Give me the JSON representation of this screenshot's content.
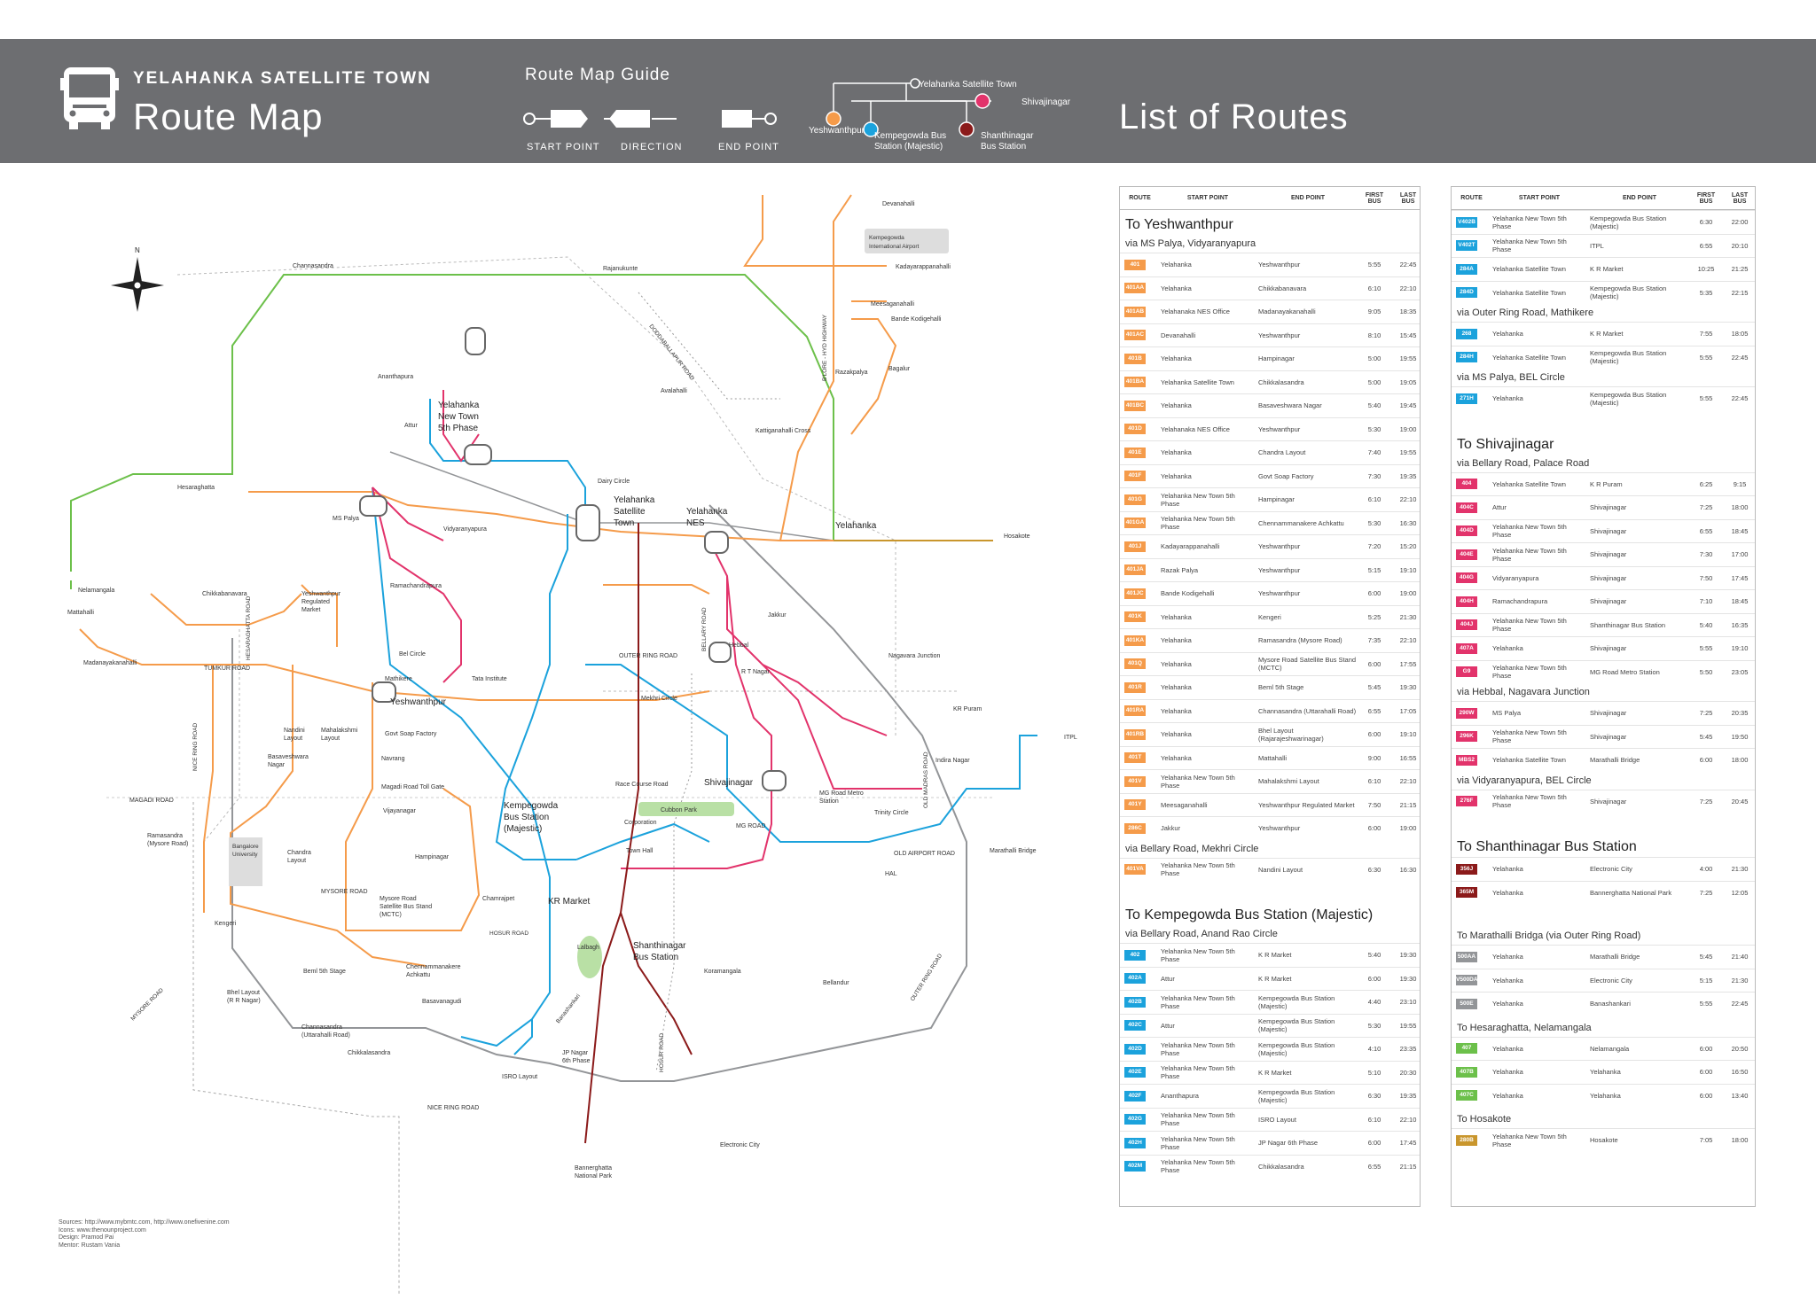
{
  "header": {
    "town": "YELAHANKA SATELLITE TOWN",
    "title": "Route Map",
    "guide_title": "Route Map Guide",
    "guide_labels": [
      "START POINT",
      "DIRECTION",
      "END POINT"
    ],
    "list_title": "List of Routes",
    "legend": {
      "yelahanka": "Yelahanka Satellite Town",
      "shivajinagar": "Shivajinagar",
      "yeshwanthpur": "Yeshwanthpur",
      "kempegowda": "Kempegowda Bus Station (Majestic)",
      "shanthinagar": "Shanthinagar Bus Station"
    }
  },
  "colors": {
    "orange": "#f59b4a",
    "blue": "#1ba2dc",
    "pink": "#e2336b",
    "maroon": "#8b1a1a",
    "green": "#6cc04a",
    "gray": "#939598",
    "gold": "#c9962d",
    "header": "#6d6e71"
  },
  "map_labels": {
    "devanahalli": "Devanahalli",
    "airport": "Kempegowda International Airport",
    "kadayarappanahalli": "Kadayarappanahalli",
    "meesaganahalli": "Meesaganahalli",
    "bande": "Bande Kodigehalli",
    "razakpalya": "Razakpalya",
    "bagalur": "Bagalur",
    "katiganahalli": "Kattiganahalli Cross",
    "hyd_hwy": "B'LORE - HYD HIGHWAY",
    "channasandra": "Channasandra",
    "rajanukunte": "Rajanukunte",
    "doddaballapur": "DODDABALLAPUR ROAD",
    "avalahalli": "Avalahalli",
    "anantapura": "Ananthapura",
    "attur": "Attur",
    "ytown": "Yelahanka New Town 5th Phase",
    "hesaraghatta": "Hesaraghatta",
    "mspalya": "MS Palya",
    "dairy": "Dairy Circle",
    "yst": "Yelahanka Satellite Town",
    "ynes": "Yelahanka NES",
    "yelahanka": "Yelahanka",
    "hosakote": "Hosakote",
    "vidyaranyapura": "Vidyaranyapura",
    "nelamangala": "Nelamangala",
    "mattahalli": "Mattahalli",
    "chikkabanavara": "Chikkabanavara",
    "ramachandrapura": "Ramachandrapura",
    "yrm": "Yeshwanthpur Regulated Market",
    "hesar_road": "HESARAGHATTA ROAD",
    "madanayakanahalli": "Madanayakanahalli",
    "tumkur": "TUMKUR ROAD",
    "belcircle": "Bel Circle",
    "mathikere": "Mathikere",
    "tata": "Tata Institute",
    "orr": "OUTER RING ROAD",
    "jakkur": "Jakkur",
    "hebbal": "Hebbal",
    "bellary": "BELLARY ROAD",
    "rtnagar": "R T Nagar",
    "nagavara": "Nagavara Junction",
    "yeshwanthpur": "Yeshwanthpur",
    "mekhri": "Mekhri Circle",
    "krpuram": "KR Puram",
    "itpl": "ITPL",
    "nandini": "Nandini Layout",
    "mahalakshmi": "Mahalakshmi Layout",
    "gsf": "Govt Soap Factory",
    "basaveshwara": "Basaveshwara Nagar",
    "navrang": "Navrang",
    "nice": "NICE RING ROAD",
    "magaditoll": "Magadi Road Toll Gate",
    "magadi": "MAGADI ROAD",
    "racecourse": "Race Course Road",
    "kbs": "Kempegowda Bus Station (Majestic)",
    "cubbon": "Cubbon Park",
    "shivajinagar": "Shivajinagar",
    "indiranagar": "Indira Nagar",
    "oldmadras": "OLD MADRAS ROAD",
    "mgmetro": "MG Road Metro Station",
    "mgroad": "MG ROAD",
    "trinity": "Trinity Circle",
    "corporation": "Corporation",
    "oldairport": "OLD AIRPORT ROAD",
    "marathalli": "Marathalli Bridge",
    "vijayanagar": "Vijayanagar",
    "ramasandra": "Ramasandra (Mysore Road)",
    "bu": "Bangalore University",
    "chandra": "Chandra Layout",
    "hampinagar": "Hampinagar",
    "townhall": "Town Hall",
    "hal": "HAL",
    "mysore_road": "MYSORE ROAD",
    "msbs": "Mysore Road Satellite Bus Stand (MCTC)",
    "chamrajpet": "Chamrajpet",
    "kengeri": "Kengeri",
    "krmarket": "KR Market",
    "hosur": "HOSUR ROAD",
    "lalbagh": "Lalbagh",
    "shanthinagar": "Shanthinagar Bus Station",
    "chennammanakere": "Chennammanakere Achkattu",
    "bhel": "Bhel Layout (R R Nagar)",
    "bemlstage": "Beml 5th Stage",
    "koramangala": "Koramangala",
    "bellandur": "Bellandur",
    "basavanagudi": "Basavanagudi",
    "channasandra2": "Channasandra (Uttarahalli Road)",
    "chikkalasandra": "Chikkalasandra",
    "banashankari": "Banashankari",
    "jpnagar": "JP Nagar 6th Phase",
    "isro": "ISRO Layout",
    "electronic": "Electronic City",
    "bannerghatta": "Bannerghatta National Park",
    "hosur2": "HOSUR ROAD",
    "mysore2": "MYSORE ROAD",
    "outer2": "OUTER RING ROAD"
  },
  "table_headers": [
    "ROUTE",
    "START POINT",
    "END POINT",
    "FIRST BUS",
    "LAST BUS"
  ],
  "left_table": [
    {
      "type": "h",
      "text": "To Yeshwanthpur"
    },
    {
      "type": "s",
      "text": "via MS Palya, Vidyaranyapura"
    },
    {
      "type": "r",
      "route": "401",
      "color": "orange",
      "start": "Yelahanka",
      "end": "Yeshwanthpur",
      "first": "5:55",
      "last": "22:45"
    },
    {
      "type": "r",
      "route": "401AA",
      "color": "orange",
      "start": "Yelahanka",
      "end": "Chikkabanavara",
      "first": "6:10",
      "last": "22:10"
    },
    {
      "type": "r",
      "route": "401AB",
      "color": "orange",
      "start": "Yelahanaka NES Office",
      "end": "Madanayakanahalli",
      "first": "9:05",
      "last": "18:35"
    },
    {
      "type": "r",
      "route": "401AC",
      "color": "orange",
      "start": "Devanahalli",
      "end": "Yeshwanthpur",
      "first": "8:10",
      "last": "15:45"
    },
    {
      "type": "r",
      "route": "401B",
      "color": "orange",
      "start": "Yelahanka",
      "end": "Hampinagar",
      "first": "5:00",
      "last": "19:55"
    },
    {
      "type": "r",
      "route": "401BA",
      "color": "orange",
      "start": "Yelahanka Satellite Town",
      "end": "Chikkalasandra",
      "first": "5:00",
      "last": "19:05"
    },
    {
      "type": "r",
      "route": "401BC",
      "color": "orange",
      "start": "Yelahanka",
      "end": "Basaveshwara Nagar",
      "first": "5:40",
      "last": "19:45"
    },
    {
      "type": "r",
      "route": "401D",
      "color": "orange",
      "start": "Yelahanaka NES Office",
      "end": "Yeshwanthpur",
      "first": "5:30",
      "last": "19:00"
    },
    {
      "type": "r",
      "route": "401E",
      "color": "orange",
      "start": "Yelahanka",
      "end": "Chandra Layout",
      "first": "7:40",
      "last": "19:55"
    },
    {
      "type": "r",
      "route": "401F",
      "color": "orange",
      "start": "Yelahanka",
      "end": "Govt Soap Factory",
      "first": "7:30",
      "last": "19:35"
    },
    {
      "type": "r",
      "route": "401G",
      "color": "orange",
      "start": "Yelahanka New Town 5th Phase",
      "end": "Hampinagar",
      "first": "6:10",
      "last": "22:10"
    },
    {
      "type": "r",
      "route": "401GA",
      "color": "orange",
      "start": "Yelahanka New Town 5th Phase",
      "end": "Chennammanakere Achkattu",
      "first": "5:30",
      "last": "16:30"
    },
    {
      "type": "r",
      "route": "401J",
      "color": "orange",
      "start": "Kadayarappanahalli",
      "end": "Yeshwanthpur",
      "first": "7:20",
      "last": "15:20"
    },
    {
      "type": "r",
      "route": "401JA",
      "color": "orange",
      "start": "Razak Palya",
      "end": "Yeshwanthpur",
      "first": "5:15",
      "last": "19:10"
    },
    {
      "type": "r",
      "route": "401JC",
      "color": "orange",
      "start": "Bande Kodigehalli",
      "end": "Yeshwanthpur",
      "first": "6:00",
      "last": "19:00"
    },
    {
      "type": "r",
      "route": "401K",
      "color": "orange",
      "start": "Yelahanka",
      "end": "Kengeri",
      "first": "5:25",
      "last": "21:30"
    },
    {
      "type": "r",
      "route": "401KA",
      "color": "orange",
      "start": "Yelahanka",
      "end": "Ramasandra (Mysore Road)",
      "first": "7:35",
      "last": "22:10"
    },
    {
      "type": "r",
      "route": "401Q",
      "color": "orange",
      "start": "Yelahanka",
      "end": "Mysore Road Satellite Bus Stand (MCTC)",
      "first": "6:00",
      "last": "17:55"
    },
    {
      "type": "r",
      "route": "401R",
      "color": "orange",
      "start": "Yelahanka",
      "end": "Beml 5th Stage",
      "first": "5:45",
      "last": "19:30"
    },
    {
      "type": "r",
      "route": "401RA",
      "color": "orange",
      "start": "Yelahanka",
      "end": "Channasandra (Uttarahalli Road)",
      "first": "6:55",
      "last": "17:05"
    },
    {
      "type": "r",
      "route": "401RB",
      "color": "orange",
      "start": "Yelahanka",
      "end": "Bhel Layout (Rajarajeshwarinagar)",
      "first": "6:00",
      "last": "19:10"
    },
    {
      "type": "r",
      "route": "401T",
      "color": "orange",
      "start": "Yelahanka",
      "end": "Mattahalli",
      "first": "9:00",
      "last": "16:55"
    },
    {
      "type": "r",
      "route": "401V",
      "color": "orange",
      "start": "Yelahanka New Town 5th Phase",
      "end": "Mahalakshmi Layout",
      "first": "6:10",
      "last": "22:10"
    },
    {
      "type": "r",
      "route": "401Y",
      "color": "orange",
      "start": "Meesaganahalli",
      "end": "Yeshwanthpur Regulated Market",
      "first": "7:50",
      "last": "21:15"
    },
    {
      "type": "r",
      "route": "286C",
      "color": "orange",
      "start": "Jakkur",
      "end": "Yeshwanthpur",
      "first": "6:00",
      "last": "19:00"
    },
    {
      "type": "s",
      "text": "via Bellary Road, Mekhri Circle"
    },
    {
      "type": "r",
      "route": "401VA",
      "color": "orange",
      "start": "Yelahanka New Town 5th Phase",
      "end": "Nandini Layout",
      "first": "6:30",
      "last": "16:30"
    },
    {
      "type": "gap"
    },
    {
      "type": "h",
      "text": "To  Kempegowda Bus Station (Majestic)"
    },
    {
      "type": "s",
      "text": "via Bellary Road, Anand Rao Circle"
    },
    {
      "type": "r",
      "route": "402",
      "color": "blue",
      "start": "Yelahanka New Town 5th Phase",
      "end": "K R Market",
      "first": "5:40",
      "last": "19:30"
    },
    {
      "type": "r",
      "route": "402A",
      "color": "blue",
      "start": "Attur",
      "end": "K R Market",
      "first": "6:00",
      "last": "19:30"
    },
    {
      "type": "r",
      "route": "402B",
      "color": "blue",
      "start": "Yelahanka New Town 5th Phase",
      "end": "Kempegowda Bus Station (Majestic)",
      "first": "4:40",
      "last": "23:10"
    },
    {
      "type": "r",
      "route": "402C",
      "color": "blue",
      "start": "Attur",
      "end": "Kempegowda Bus Station (Majestic)",
      "first": "5:30",
      "last": "19:55"
    },
    {
      "type": "r",
      "route": "402D",
      "color": "blue",
      "start": "Yelahanka New Town 5th Phase",
      "end": "Kempegowda Bus Station (Majestic)",
      "first": "4:10",
      "last": "23:35"
    },
    {
      "type": "r",
      "route": "402E",
      "color": "blue",
      "start": "Yelahanka New Town 5th Phase",
      "end": "K R Market",
      "first": "5:10",
      "last": "20:30"
    },
    {
      "type": "r",
      "route": "402F",
      "color": "blue",
      "start": "Ananthapura",
      "end": "Kempegowda Bus Station (Majestic)",
      "first": "6:30",
      "last": "19:35"
    },
    {
      "type": "r",
      "route": "402G",
      "color": "blue",
      "start": "Yelahanka New Town 5th Phase",
      "end": "ISRO Layout",
      "first": "6:10",
      "last": "22:10"
    },
    {
      "type": "r",
      "route": "402H",
      "color": "blue",
      "start": "Yelahanka New Town 5th Phase",
      "end": "JP Nagar 6th Phase",
      "first": "6:00",
      "last": "17:45"
    },
    {
      "type": "r",
      "route": "402M",
      "color": "blue",
      "start": "Yelahanka New Town 5th Phase",
      "end": "Chikkalasandra",
      "first": "6:55",
      "last": "21:15"
    }
  ],
  "right_table": [
    {
      "type": "r",
      "route": "V402B",
      "color": "blue",
      "start": "Yelahanka New Town 5th Phase",
      "end": "Kempegowda Bus Station (Majestic)",
      "first": "6:30",
      "last": "22:00"
    },
    {
      "type": "r",
      "route": "V402T",
      "color": "blue",
      "start": "Yelahanka New Town 5th Phase",
      "end": "ITPL",
      "first": "6:55",
      "last": "20:10"
    },
    {
      "type": "r",
      "route": "284A",
      "color": "blue",
      "start": "Yelahanka Satellite Town",
      "end": "K R Market",
      "first": "10:25",
      "last": "21:25"
    },
    {
      "type": "r",
      "route": "284D",
      "color": "blue",
      "start": "Yelahanka Satellite Town",
      "end": "Kempegowda Bus Station (Majestic)",
      "first": "5:35",
      "last": "22:15"
    },
    {
      "type": "s",
      "text": "via Outer Ring Road, Mathikere"
    },
    {
      "type": "r",
      "route": "268",
      "color": "blue",
      "start": "Yelahanka",
      "end": "K R Market",
      "first": "7:55",
      "last": "18:05"
    },
    {
      "type": "r",
      "route": "284H",
      "color": "blue",
      "start": "Yelahanka Satellite Town",
      "end": "Kempegowda Bus Station (Majestic)",
      "first": "5:55",
      "last": "22:45"
    },
    {
      "type": "s",
      "text": "via MS Palya, BEL Circle"
    },
    {
      "type": "r",
      "route": "271H",
      "color": "blue",
      "start": "Yelahanka",
      "end": "Kempegowda Bus Station (Majestic)",
      "first": "5:55",
      "last": "22:45"
    },
    {
      "type": "gap"
    },
    {
      "type": "h",
      "text": "To Shivajinagar"
    },
    {
      "type": "s",
      "text": "via Bellary Road, Palace Road"
    },
    {
      "type": "r",
      "route": "404",
      "color": "pink",
      "start": "Yelahanka Satellite Town",
      "end": "K R Puram",
      "first": "6:25",
      "last": "9:15"
    },
    {
      "type": "r",
      "route": "404C",
      "color": "pink",
      "start": "Attur",
      "end": "Shivajinagar",
      "first": "7:25",
      "last": "18:00"
    },
    {
      "type": "r",
      "route": "404D",
      "color": "pink",
      "start": "Yelahanka New Town 5th Phase",
      "end": "Shivajinagar",
      "first": "6:55",
      "last": "18:45"
    },
    {
      "type": "r",
      "route": "404E",
      "color": "pink",
      "start": "Yelahanka New Town 5th Phase",
      "end": "Shivajinagar",
      "first": "7:30",
      "last": "17:00"
    },
    {
      "type": "r",
      "route": "404G",
      "color": "pink",
      "start": "Vidyaranyapura",
      "end": "Shivajinagar",
      "first": "7:50",
      "last": "17:45"
    },
    {
      "type": "r",
      "route": "404H",
      "color": "pink",
      "start": "Ramachandrapura",
      "end": "Shivajinagar",
      "first": "7:10",
      "last": "18:45"
    },
    {
      "type": "r",
      "route": "404J",
      "color": "pink",
      "start": "Yelahanka New Town 5th Phase",
      "end": "Shanthinagar Bus Station",
      "first": "5:40",
      "last": "16:35"
    },
    {
      "type": "r",
      "route": "407A",
      "color": "pink",
      "start": "Yelahanka",
      "end": "Shivajinagar",
      "first": "5:55",
      "last": "19:10"
    },
    {
      "type": "r",
      "route": "G9",
      "color": "pink",
      "start": "Yelahanka New Town 5th Phase",
      "end": "MG Road Metro Station",
      "first": "5:50",
      "last": "23:05"
    },
    {
      "type": "s",
      "text": "via Hebbal, Nagavara Junction"
    },
    {
      "type": "r",
      "route": "290W",
      "color": "pink",
      "start": "MS Palya",
      "end": "Shivajinagar",
      "first": "7:25",
      "last": "20:35"
    },
    {
      "type": "r",
      "route": "296K",
      "color": "pink",
      "start": "Yelahanka New Town 5th Phase",
      "end": "Shivajinagar",
      "first": "5:45",
      "last": "19:50"
    },
    {
      "type": "r",
      "route": "MBS2",
      "color": "pink",
      "start": "Yelahanka Satellite Town",
      "end": "Marathalli Bridge",
      "first": "6:00",
      "last": "18:00"
    },
    {
      "type": "s",
      "text": "via Vidyaranyapura, BEL Circle"
    },
    {
      "type": "r",
      "route": "276F",
      "color": "pink",
      "start": "Yelahanka New Town 5th Phase",
      "end": "Shivajinagar",
      "first": "7:25",
      "last": "20:45"
    },
    {
      "type": "gap"
    },
    {
      "type": "h",
      "text": "To Shanthinagar Bus Station"
    },
    {
      "type": "r",
      "route": "356J",
      "color": "maroon",
      "start": "Yelahanka",
      "end": "Electronic City",
      "first": "4:00",
      "last": "21:30"
    },
    {
      "type": "r",
      "route": "365M",
      "color": "maroon",
      "start": "Yelahanka",
      "end": "Bannerghatta National Park",
      "first": "7:25",
      "last": "12:05"
    },
    {
      "type": "gap"
    },
    {
      "type": "s2",
      "text": "To Marathalli Bridga (via Outer Ring Road)"
    },
    {
      "type": "r",
      "route": "500AA",
      "color": "gray",
      "start": "Yelahanka",
      "end": "Marathalli Bridge",
      "first": "5:45",
      "last": "21:40"
    },
    {
      "type": "r",
      "route": "V500DA",
      "color": "gray",
      "start": "Yelahanka",
      "end": "Electronic City",
      "first": "5:15",
      "last": "21:30"
    },
    {
      "type": "r",
      "route": "500E",
      "color": "gray",
      "start": "Yelahanka",
      "end": "Banashankari",
      "first": "5:55",
      "last": "22:45"
    },
    {
      "type": "s2",
      "text": "To Hesaraghatta, Nelamangala"
    },
    {
      "type": "r",
      "route": "407",
      "color": "green",
      "start": "Yelahanka",
      "end": "Nelamangala",
      "first": "6:00",
      "last": "20:50"
    },
    {
      "type": "r",
      "route": "407B",
      "color": "green",
      "start": "Yelahanka",
      "end": "Yelahanka",
      "first": "6:00",
      "last": "16:50"
    },
    {
      "type": "r",
      "route": "407C",
      "color": "green",
      "start": "Yelahanka",
      "end": "Yelahanka",
      "first": "6:00",
      "last": "13:40"
    },
    {
      "type": "s2",
      "text": "To Hosakote"
    },
    {
      "type": "r",
      "route": "280B",
      "color": "gold",
      "start": "Yelahanka New Town 5th Phase",
      "end": "Hosakote",
      "first": "7:05",
      "last": "18:00"
    }
  ],
  "footer": [
    "Sources: http://www.mybmtc.com, http://www.onefivenine.com",
    "Icons: www.thenounproject.com",
    "Design: Pramod Pai",
    "Mentor: Rustam Vania"
  ]
}
